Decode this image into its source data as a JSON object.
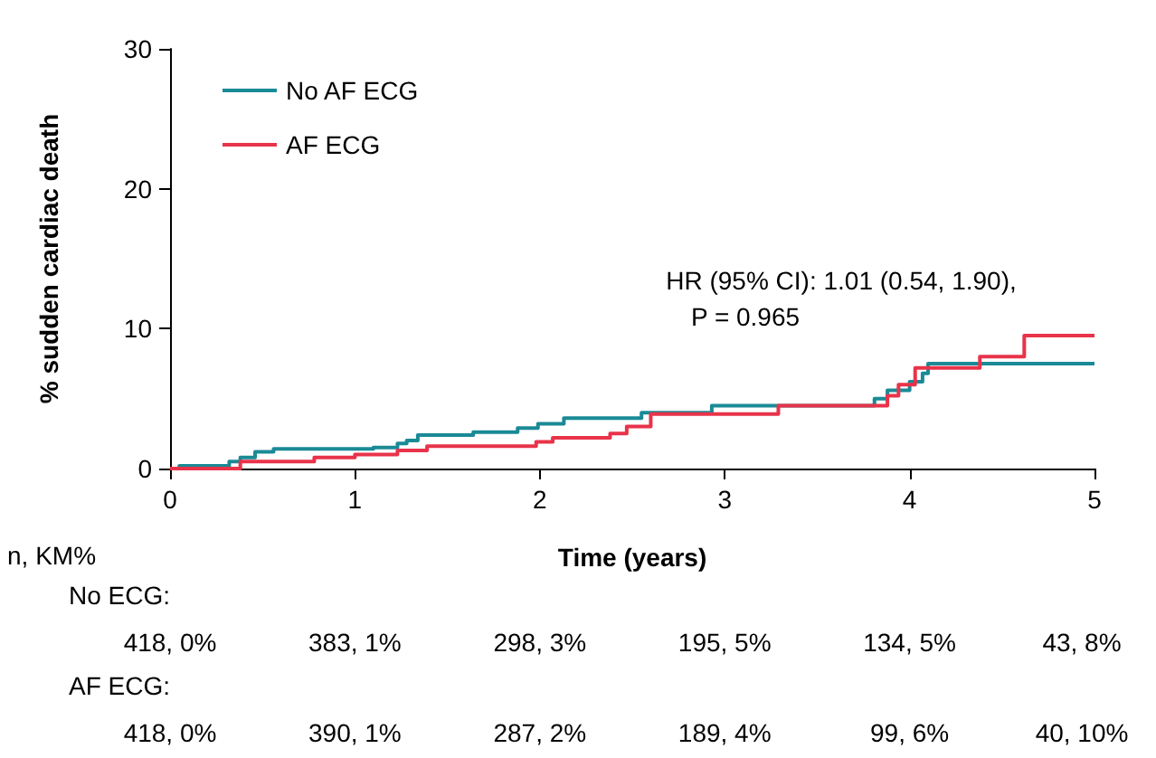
{
  "chart_data": {
    "type": "step",
    "xlabel": "Time (years)",
    "ylabel": "% sudden cardiac death",
    "xlim": [
      0,
      5
    ],
    "xticks": [
      0,
      1,
      2,
      3,
      4,
      5
    ],
    "ylim": [
      0,
      30
    ],
    "yticks": [
      0,
      10,
      20,
      30
    ],
    "grid": false,
    "legend": "top left",
    "marker": "none",
    "line_style": "solid",
    "series": [
      {
        "name": "No AF ECG",
        "color": "#1a8a96",
        "x": [
          0,
          0.05,
          0.32,
          0.38,
          0.46,
          0.56,
          1.1,
          1.23,
          1.28,
          1.34,
          1.64,
          1.88,
          1.99,
          2.13,
          2.55,
          2.93,
          3.81,
          3.88,
          4.0,
          4.07,
          4.1,
          5
        ],
        "values": [
          0,
          0.2,
          0.5,
          0.8,
          1.2,
          1.4,
          1.5,
          1.8,
          2.0,
          2.4,
          2.6,
          2.9,
          3.2,
          3.6,
          4.0,
          4.5,
          5.0,
          5.6,
          6.2,
          6.8,
          7.5,
          7.5
        ]
      },
      {
        "name": "AF ECG",
        "color": "#e8334a",
        "x": [
          0,
          0.38,
          0.78,
          1.0,
          1.23,
          1.39,
          1.98,
          2.07,
          2.38,
          2.47,
          2.6,
          3.29,
          3.88,
          3.94,
          4.03,
          4.38,
          4.62,
          5
        ],
        "values": [
          0,
          0.5,
          0.8,
          1.0,
          1.3,
          1.6,
          1.9,
          2.2,
          2.5,
          3.0,
          3.9,
          4.5,
          5.2,
          6.0,
          7.2,
          8.0,
          9.5,
          9.5
        ]
      }
    ],
    "annotations": [
      "HR (95% CI): 1.01 (0.54, 1.90),",
      "P = 0.965",
      "n, KM%",
      "No ECG:",
      "418, 0%",
      "383, 1%",
      "298, 3%",
      "195, 5%",
      "134, 5%",
      "43, 8%",
      "AF ECG:",
      "418, 0%",
      "390, 1%",
      "287, 2%",
      "189, 4%",
      "99, 6%",
      "40, 10%"
    ]
  }
}
